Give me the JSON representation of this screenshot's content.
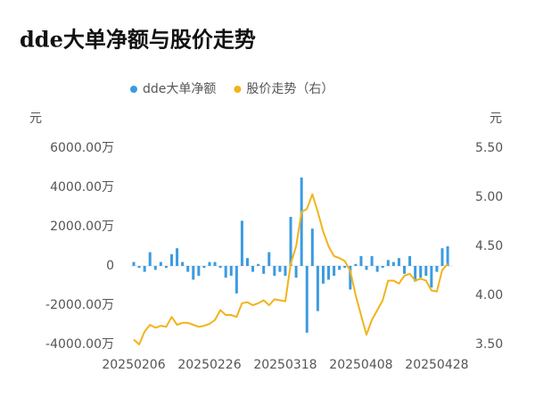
{
  "chart_data": {
    "type": "bar-line",
    "title": "dde大单净额与股价走势",
    "y_unit": "元",
    "y2_unit": "元",
    "categories": [
      "20250206",
      null,
      null,
      null,
      null,
      null,
      null,
      null,
      null,
      null,
      null,
      null,
      null,
      null,
      "20250226",
      null,
      null,
      null,
      null,
      null,
      null,
      null,
      null,
      null,
      null,
      null,
      null,
      null,
      "20250318",
      null,
      null,
      null,
      null,
      null,
      null,
      null,
      null,
      null,
      null,
      null,
      null,
      null,
      "20250408",
      null,
      null,
      null,
      null,
      null,
      null,
      null,
      null,
      null,
      null,
      null,
      null,
      null,
      "20250428",
      null,
      null
    ],
    "series": [
      {
        "name": "dde大单净额",
        "type": "bar",
        "color": "#3b9be0",
        "values": [
          200,
          -100,
          -300,
          700,
          -200,
          200,
          -100,
          600,
          900,
          200,
          -300,
          -700,
          -500,
          -100,
          200,
          200,
          -100,
          -600,
          -500,
          -1400,
          2300,
          400,
          -300,
          100,
          -400,
          700,
          -500,
          -300,
          -500,
          2500,
          -600,
          4500,
          -3400,
          1900,
          -2300,
          -900,
          -700,
          -500,
          -200,
          -100,
          -1200,
          100,
          500,
          -200,
          500,
          -300,
          -100,
          300,
          200,
          400,
          -400,
          500,
          -800,
          -600,
          -500,
          -1100,
          -300,
          900,
          1000
        ]
      },
      {
        "name": "股价走势（右）",
        "type": "line",
        "axis": "y2",
        "color": "#f2b31b",
        "values": [
          3.55,
          3.5,
          3.63,
          3.7,
          3.67,
          3.69,
          3.68,
          3.78,
          3.7,
          3.72,
          3.72,
          3.7,
          3.68,
          3.69,
          3.71,
          3.75,
          3.85,
          3.8,
          3.8,
          3.78,
          3.92,
          3.93,
          3.9,
          3.92,
          3.95,
          3.9,
          3.96,
          3.95,
          3.94,
          4.32,
          4.5,
          4.85,
          4.88,
          5.03,
          4.85,
          4.65,
          4.5,
          4.4,
          4.38,
          4.35,
          4.25,
          4.0,
          3.8,
          3.6,
          3.75,
          3.85,
          3.95,
          4.15,
          4.15,
          4.12,
          4.2,
          4.22,
          4.15,
          4.17,
          4.15,
          4.05,
          4.04,
          4.26,
          4.32
        ]
      }
    ],
    "ylim": [
      -4000,
      6000
    ],
    "yticks": [
      {
        "value": -4000,
        "label": "-4000.00万"
      },
      {
        "value": -2000,
        "label": "-2000.00万"
      },
      {
        "value": 0,
        "label": "0"
      },
      {
        "value": 2000,
        "label": "2000.00万"
      },
      {
        "value": 4000,
        "label": "4000.00万"
      },
      {
        "value": 6000,
        "label": "6000.00万"
      }
    ],
    "y2lim": [
      3.5,
      5.5
    ],
    "y2ticks": [
      {
        "value": 3.5,
        "label": "3.50"
      },
      {
        "value": 4.0,
        "label": "4.00"
      },
      {
        "value": 4.5,
        "label": "4.50"
      },
      {
        "value": 5.0,
        "label": "5.00"
      },
      {
        "value": 5.5,
        "label": "5.50"
      }
    ]
  }
}
